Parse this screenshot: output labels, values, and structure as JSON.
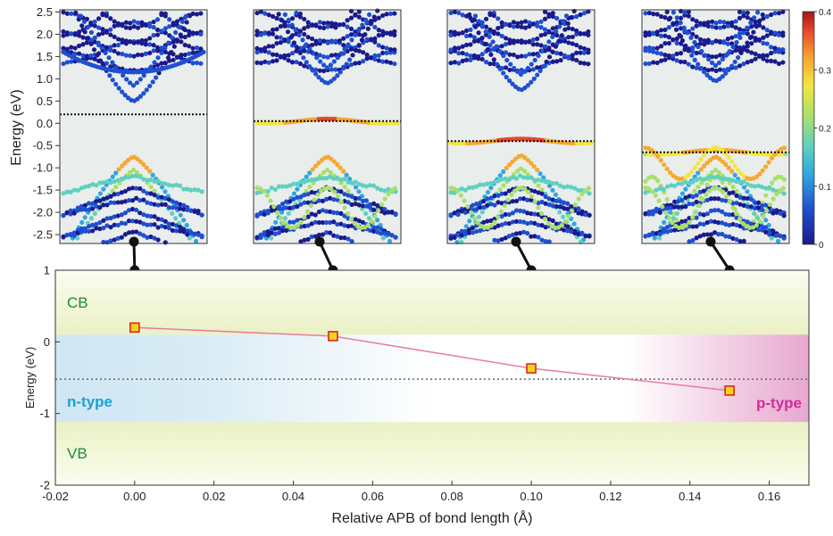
{
  "chart_data": [
    {
      "type": "scatter",
      "panel": "band-structures",
      "ylabel": "Energy (eV)",
      "yticks": [
        "2.5",
        "2.0",
        "1.5",
        "1.0",
        "0.5",
        "0.0",
        "-0.5",
        "-1.0",
        "-1.5",
        "-2.0",
        "-2.5"
      ],
      "ylim": [
        -2.7,
        2.55
      ],
      "colorbar": {
        "ticks": [
          "0.4",
          "0.3",
          "0.2",
          "0.1",
          "0"
        ],
        "range": [
          0,
          0.4
        ],
        "colormap": "jet",
        "colors": [
          "#1a1a8c",
          "#1f4fd1",
          "#2fa6e0",
          "#5fd0c0",
          "#a8e06a",
          "#f2e640",
          "#f7a830",
          "#e8452a",
          "#a01818"
        ]
      },
      "panels": [
        {
          "apb": 0.0,
          "fermi_level": 0.2
        },
        {
          "apb": 0.05,
          "fermi_level": 0.05
        },
        {
          "apb": 0.1,
          "fermi_level": -0.4
        },
        {
          "apb": 0.15,
          "fermi_level": -0.65
        }
      ]
    },
    {
      "type": "line",
      "panel": "band-edge-plot",
      "xlabel": "Relative APB of bond length (Å)",
      "ylabel": "Energy (eV)",
      "xlim": [
        -0.02,
        0.17
      ],
      "ylim": [
        -2,
        1
      ],
      "xticks": [
        "-0.02",
        "0.00",
        "0.02",
        "0.04",
        "0.06",
        "0.08",
        "0.10",
        "0.12",
        "0.14",
        "0.16"
      ],
      "yticks": [
        "1",
        "0",
        "-1",
        "-2"
      ],
      "x": [
        0.0,
        0.05,
        0.1,
        0.15
      ],
      "y": [
        0.2,
        0.08,
        -0.37,
        -0.68
      ],
      "reference_line_y": -0.52,
      "regions": {
        "cb_label": "CB",
        "vb_label": "VB",
        "cb_bottom": 0.1,
        "vb_top": -1.12,
        "n_type_label": "n-type",
        "p_type_label": "p-type"
      },
      "colors": {
        "line": "#e87aa0",
        "marker_fill": "#f5d020",
        "marker_edge": "#d62a1a",
        "band_bg": "#f2f6d8",
        "n_type": "#1aa0d8",
        "p_type": "#d62a9a",
        "region_text": "#1a8a3a"
      }
    }
  ]
}
